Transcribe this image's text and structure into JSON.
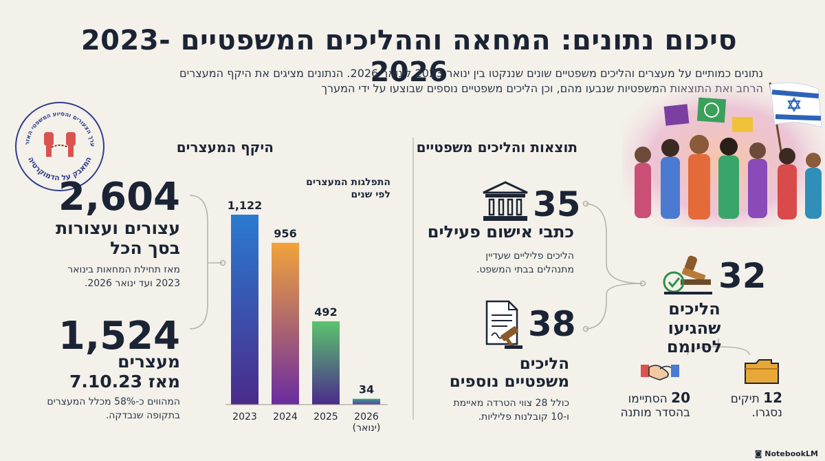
{
  "header": {
    "title": "סיכום נתונים: המחאה וההליכים המשפטיים 2023-2026",
    "subtitle": "נתונים כמותיים על מעצרים והליכים משפטיים שונים שננקטו בין ינואר 2023 לינואר 2026. הנתונים מציגים את היקף המעצרים הרחב ואת התוצאות המשפטיות שנבעו מהם, וכן הליכים משפטיים נוספים שבוצעו על ידי המערך"
  },
  "seal": {
    "text_top": "מערך הצעורים והסיוע המשפטי האזרחי",
    "text_bottom": "המאבק על הדמוקרטיה"
  },
  "arrests": {
    "heading": "היקף המעצרים",
    "total_number": "2,604",
    "total_label_1": "עצורים ועצורות",
    "total_label_2": "בסך הכל",
    "total_desc_1": "מאז תחילת המחאות בינואר",
    "total_desc_2": "2023 ועד ינואר 2026.",
    "since_number": "1,524",
    "since_label_1": "מעצרים",
    "since_label_2": "מאז 7.10.23",
    "since_desc_1": "המהווים כ-58% מכלל המעצרים",
    "since_desc_2": "בתקופה שנבדקה."
  },
  "chart_data": {
    "type": "bar",
    "title": "התפלגות המעצרים לפי שנים",
    "title_line1": "התפלגות המעצרים",
    "title_line2": "לפי שנים",
    "categories": [
      "2023",
      "2024",
      "2025",
      "2026 (ינואר)"
    ],
    "category_lines": [
      [
        "2023"
      ],
      [
        "2024"
      ],
      [
        "2025"
      ],
      [
        "2026",
        "(ינואר)"
      ]
    ],
    "values": [
      1122,
      956,
      492,
      34
    ],
    "value_labels": [
      "1,122",
      "956",
      "492",
      "34"
    ],
    "ylim": [
      0,
      1122
    ],
    "grid": false,
    "legend": "none"
  },
  "legal": {
    "heading": "תוצאות והליכים משפטיים",
    "indictments_number": "35",
    "indictments_label": "כתבי אישום פעילים",
    "indictments_desc_1": "הליכים פליליים שעדיין",
    "indictments_desc_2": "מתנהלים בבתי המשפט.",
    "concluded_number": "32",
    "concluded_label_1": "הליכים",
    "concluded_label_2": "שהגיעו לסיומם",
    "additional_number": "38",
    "additional_label_1": "הליכים",
    "additional_label_2": "משפטיים נוספים",
    "additional_desc_1": "כולל 28 צווי הטרדה מאיימת",
    "additional_desc_2": "ו-10 קובלנות פליליות.",
    "closed_number": "12",
    "closed_text": "תיקים",
    "closed_desc": "נסגרו.",
    "settled_number": "20",
    "settled_text": "הסתיימו",
    "settled_desc": "בהסדר מותנה"
  },
  "footer": {
    "brand": "NotebookLM"
  },
  "colors": {
    "bar_2023": [
      "#2a7bd1",
      "#4b2a8a"
    ],
    "bar_2024": [
      "#f2a33a",
      "#6a2ca0"
    ],
    "bar_2025": [
      "#5cc46e",
      "#4a2b8c"
    ],
    "bar_2026": [
      "#2aa58a",
      "#6a38a8"
    ],
    "connector": "#b8b2a8"
  }
}
